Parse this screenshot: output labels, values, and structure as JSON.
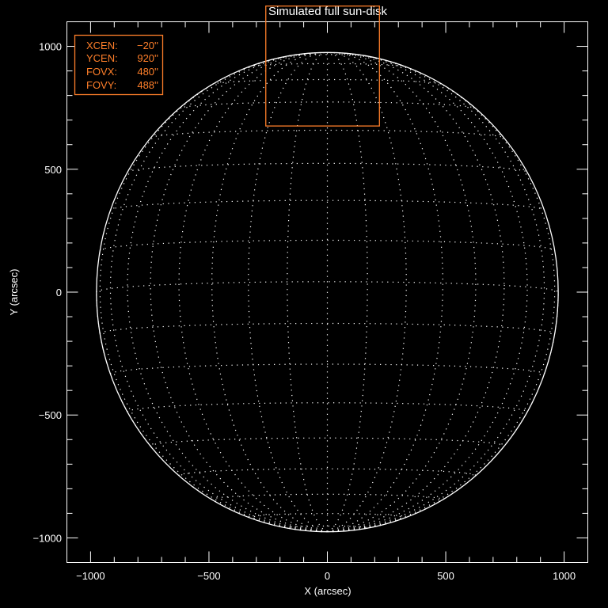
{
  "chart_data": {
    "type": "line",
    "title": "Simulated full sun-disk",
    "xlabel": "X (arcsec)",
    "ylabel": "Y (arcsec)",
    "xlim": [
      -1100,
      1100
    ],
    "ylim": [
      -1100,
      1100
    ],
    "xticks": [
      -1000,
      -500,
      0,
      500,
      1000
    ],
    "yticks": [
      -1000,
      -500,
      0,
      500,
      1000
    ],
    "xtick_labels": [
      "−1000",
      "−500",
      "0",
      "500",
      "1000"
    ],
    "ytick_labels": [
      "−1000",
      "−500",
      "0",
      "500",
      "1000"
    ],
    "minor_tick_step": 100,
    "grid": false,
    "solar_radius_arcsec": 975,
    "heliographic_grid_spacing_deg": 10,
    "b0_angle_deg": -2.5,
    "limb_color": "#ffffff",
    "grid_color": "#ffffff",
    "fov_box": {
      "xcen": -20,
      "ycen": 920,
      "fovx": 480,
      "fovy": 488,
      "color": "#ff7f2a"
    },
    "legend": {
      "placement": "top-left",
      "entries": [
        {
          "label": "XCEN:",
          "value": "−20''"
        },
        {
          "label": "YCEN:",
          "value": "920''"
        },
        {
          "label": "FOVX:",
          "value": "480''"
        },
        {
          "label": "FOVY:",
          "value": "488''"
        }
      ]
    }
  }
}
